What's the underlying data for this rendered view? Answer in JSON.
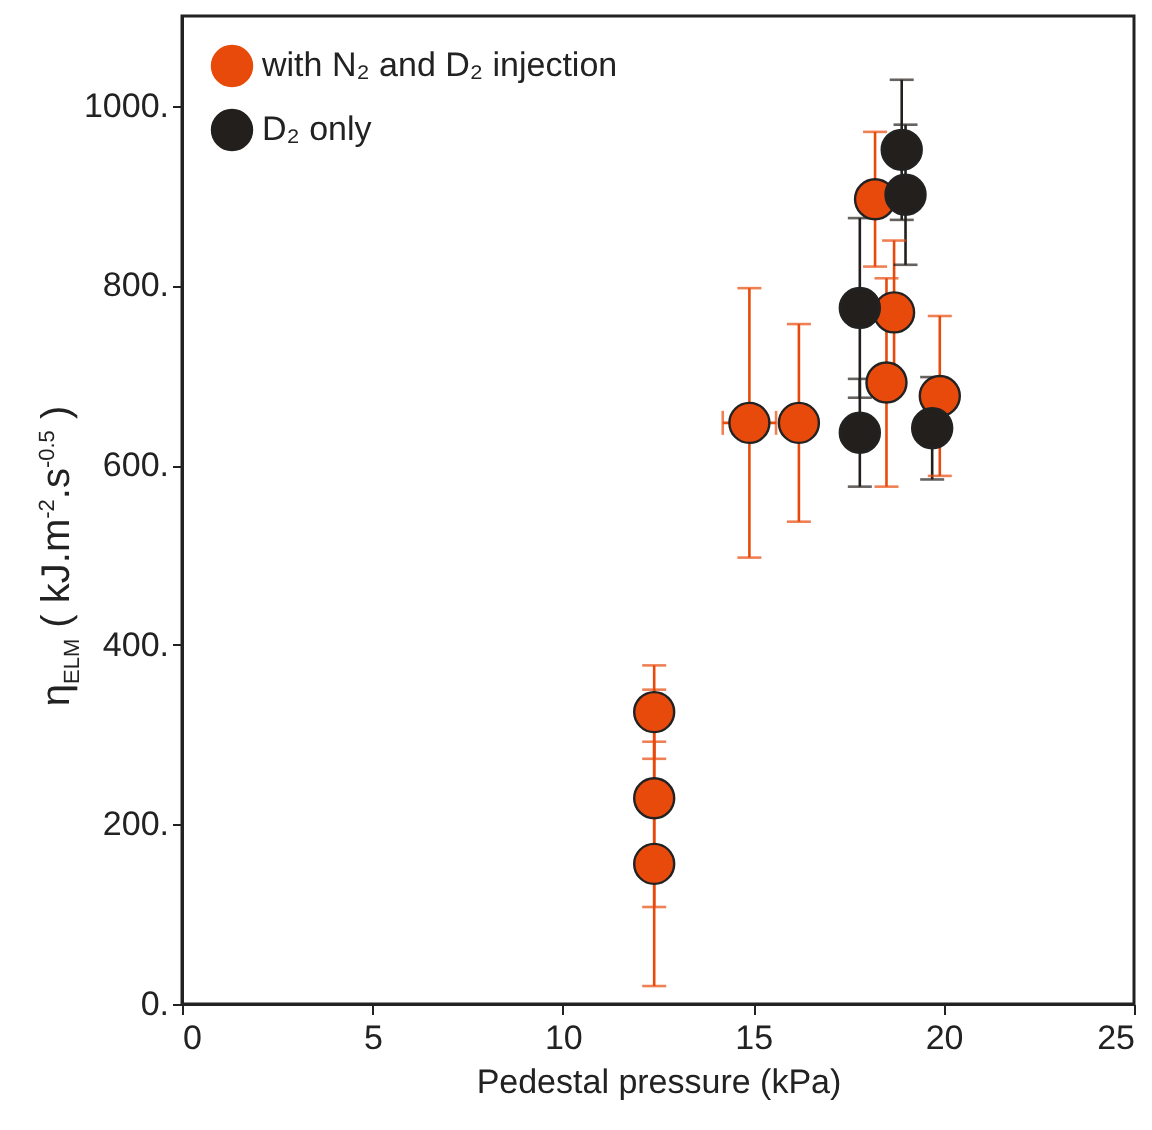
{
  "chart_data": {
    "type": "scatter",
    "xlabel": "Pedestal pressure (kPa)",
    "ylabel": "η$_{ELM}$ ( kJ.m$^{-2}$.s$^{-0.5}$ )",
    "xlim": [
      0,
      25
    ],
    "xticks": [
      0,
      5,
      10,
      15,
      20,
      25
    ],
    "ylim": [
      0,
      1100
    ],
    "yticks": [
      {
        "value": 0,
        "label": "0."
      },
      {
        "value": 200,
        "label": "200."
      },
      {
        "value": 400,
        "label": "400."
      },
      {
        "value": 600,
        "label": "600."
      },
      {
        "value": 800,
        "label": "800."
      },
      {
        "value": 1000,
        "label": "1000."
      }
    ],
    "marker": "circle",
    "legend": "top left",
    "series": [
      {
        "name": "with N₂ and D₂ injection",
        "color": "#e84a0c",
        "x": [
          14.9,
          16.2,
          18.2,
          18.7,
          18.5,
          19.9,
          12.4,
          12.4,
          12.4
        ],
        "values": [
          647,
          647,
          896,
          770,
          692,
          677,
          325,
          229,
          156
        ],
        "errors": [
          150,
          110,
          75,
          80,
          116,
          89,
          52,
          121,
          136
        ],
        "xerrors": [
          0.7,
          null,
          null,
          null,
          null,
          null,
          0.2,
          null,
          null
        ]
      },
      {
        "name": "D₂ only",
        "color": "#231f1c",
        "x": [
          18.9,
          19.0,
          17.8,
          17.8,
          19.7
        ],
        "values": [
          951,
          901,
          775,
          636,
          641
        ],
        "errors": [
          78,
          78,
          100,
          60,
          57
        ],
        "xerrors": [
          null,
          0.4,
          null,
          null,
          0.4
        ]
      }
    ]
  }
}
